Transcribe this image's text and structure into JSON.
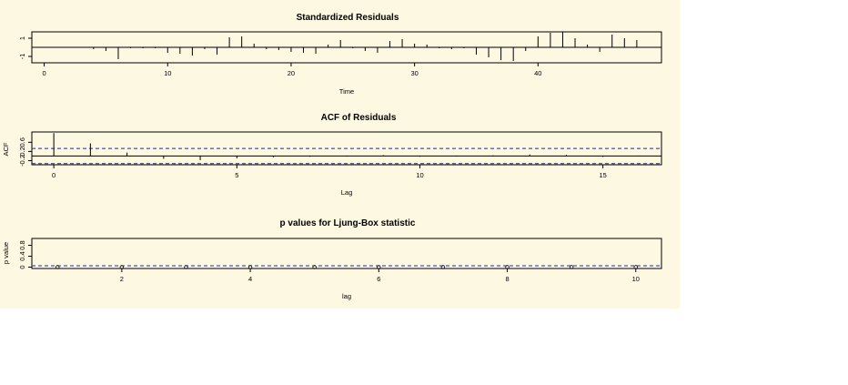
{
  "chart_data": [
    {
      "type": "bar",
      "title": "Standardized Residuals",
      "xlabel": "Time",
      "ylabel": "",
      "xlim": [
        -1,
        50
      ],
      "ylim": [
        -1.7,
        1.7
      ],
      "xticks": [
        0,
        10,
        20,
        30,
        40
      ],
      "yticks": [
        -1,
        1
      ],
      "x": [
        1,
        2,
        3,
        4,
        5,
        6,
        7,
        8,
        9,
        10,
        11,
        12,
        13,
        14,
        15,
        16,
        17,
        18,
        19,
        20,
        21,
        22,
        23,
        24,
        25,
        26,
        27,
        28,
        29,
        30,
        31,
        32,
        33,
        34,
        35,
        36,
        37,
        38,
        39,
        40,
        41,
        42,
        43,
        44,
        45,
        46,
        47,
        48
      ],
      "values": [
        0,
        0,
        0,
        -0.2,
        -0.4,
        -1.3,
        -0.1,
        -0.1,
        -0.1,
        -0.6,
        -0.7,
        -0.9,
        -0.2,
        -0.8,
        1.1,
        1.2,
        0.4,
        -0.2,
        -0.3,
        -0.5,
        -0.6,
        -0.7,
        0.3,
        0.8,
        -0.1,
        -0.4,
        -0.6,
        0.7,
        0.9,
        0.4,
        0.3,
        -0.1,
        -0.2,
        -0.1,
        -0.8,
        -1.1,
        -1.4,
        -1.5,
        -0.4,
        1.2,
        1.6,
        1.7,
        1.0,
        0.3,
        -0.5,
        1.4,
        1.0,
        0.8
      ]
    },
    {
      "type": "bar",
      "title": "ACF of Residuals",
      "xlabel": "Lag",
      "ylabel": "ACF",
      "xlim": [
        -0.6,
        16.6
      ],
      "ylim": [
        -0.38,
        1.05
      ],
      "xticks": [
        0,
        5,
        10,
        15
      ],
      "yticks": [
        -0.2,
        0.2,
        0.6
      ],
      "x": [
        0,
        1,
        2,
        3,
        4,
        5,
        6,
        7,
        8,
        9,
        10,
        11,
        12,
        13,
        14,
        15,
        16
      ],
      "values": [
        1.0,
        0.55,
        0.15,
        -0.12,
        -0.18,
        -0.1,
        -0.05,
        -0.03,
        -0.02,
        0.04,
        -0.03,
        -0.02,
        0.03,
        0.07,
        0.05,
        -0.04,
        0.02
      ],
      "ci": 0.33
    },
    {
      "type": "scatter",
      "title": "p values for Ljung-Box statistic",
      "xlabel": "lag",
      "ylabel": "p value",
      "xlim": [
        0.6,
        10.4
      ],
      "ylim": [
        -0.05,
        1.05
      ],
      "xticks": [
        2,
        4,
        6,
        8,
        10
      ],
      "yticks": [
        0.0,
        0.4,
        0.8
      ],
      "x": [
        1,
        2,
        3,
        4,
        5,
        6,
        7,
        8,
        9,
        10
      ],
      "values": [
        0,
        0,
        0,
        0,
        0,
        0,
        0,
        0,
        0,
        0
      ],
      "significance": 0.05
    }
  ]
}
